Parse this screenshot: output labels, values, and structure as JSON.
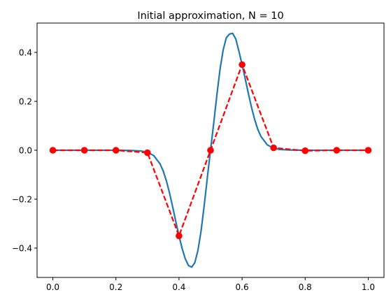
{
  "chart_data": {
    "type": "line",
    "title": "Initial approximation, N = 10",
    "xlabel": "",
    "ylabel": "",
    "xlim": [
      -0.05,
      1.05
    ],
    "ylim": [
      -0.52,
      0.52
    ],
    "xticks": [
      0.0,
      0.2,
      0.4,
      0.6,
      0.8,
      1.0
    ],
    "yticks": [
      -0.4,
      -0.2,
      0.0,
      0.2,
      0.4
    ],
    "xtick_labels": [
      "0.0",
      "0.2",
      "0.4",
      "0.6",
      "0.8",
      "1.0"
    ],
    "ytick_labels": [
      "−0.4",
      "−0.2",
      "0.0",
      "0.2",
      "0.4"
    ],
    "grid": false,
    "legend": "none",
    "series": [
      {
        "style": "solid",
        "color": "#1f77b4",
        "x": [
          0.0,
          0.05,
          0.1,
          0.15,
          0.2,
          0.25,
          0.28,
          0.3,
          0.32,
          0.34,
          0.35,
          0.36,
          0.37,
          0.38,
          0.39,
          0.4,
          0.41,
          0.42,
          0.43,
          0.44,
          0.45,
          0.46,
          0.47,
          0.48,
          0.49,
          0.5,
          0.51,
          0.52,
          0.53,
          0.54,
          0.55,
          0.56,
          0.57,
          0.58,
          0.59,
          0.6,
          0.61,
          0.62,
          0.63,
          0.64,
          0.65,
          0.66,
          0.68,
          0.7,
          0.72,
          0.75,
          0.8,
          0.85,
          0.9,
          0.95,
          1.0
        ],
        "values": [
          0.0,
          0.0,
          0.0,
          0.0,
          0.0,
          -0.001,
          -0.003,
          -0.008,
          -0.022,
          -0.056,
          -0.085,
          -0.125,
          -0.175,
          -0.232,
          -0.292,
          -0.35,
          -0.402,
          -0.444,
          -0.471,
          -0.478,
          -0.46,
          -0.41,
          -0.33,
          -0.225,
          -0.11,
          0.0,
          0.11,
          0.225,
          0.33,
          0.41,
          0.46,
          0.475,
          0.478,
          0.455,
          0.405,
          0.35,
          0.292,
          0.232,
          0.175,
          0.125,
          0.085,
          0.056,
          0.022,
          0.008,
          0.003,
          0.001,
          0.0,
          0.0,
          0.0,
          0.0,
          0.0
        ]
      },
      {
        "style": "dashed",
        "marker": "circle",
        "color": "#ff0000",
        "x": [
          0.0,
          0.1,
          0.2,
          0.3,
          0.4,
          0.5,
          0.6,
          0.7,
          0.8,
          0.9,
          1.0
        ],
        "values": [
          0.0,
          0.0,
          0.0,
          -0.01,
          -0.35,
          0.0,
          0.35,
          0.01,
          -0.002,
          0.0,
          0.0
        ]
      }
    ]
  }
}
